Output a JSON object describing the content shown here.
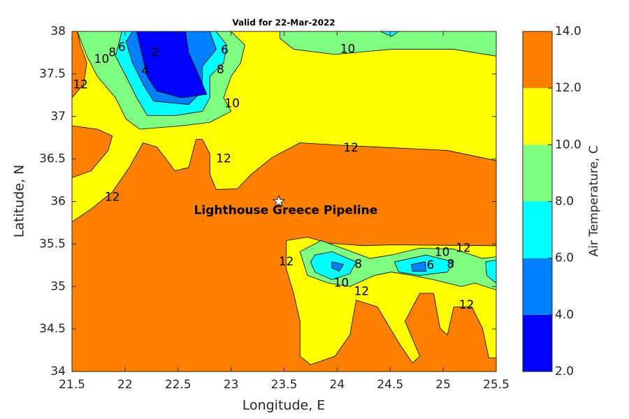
{
  "chart_data": {
    "type": "contour",
    "title": "Valid for 22-Mar-2022",
    "x_label": "Longitude, E",
    "y_label": "Latitude, N",
    "xlim": [
      21.5,
      25.5
    ],
    "ylim": [
      34,
      38
    ],
    "xticks": [
      21.5,
      22,
      22.5,
      23,
      23.5,
      24,
      24.5,
      25,
      25.5
    ],
    "yticks": [
      34,
      34.5,
      35,
      35.5,
      36,
      36.5,
      37,
      37.5,
      38
    ],
    "colorbar": {
      "label": "Air Temperature, C",
      "lim": [
        2,
        14
      ],
      "ticks": [
        {
          "value": 2,
          "label": "2.0"
        },
        {
          "value": 4,
          "label": "4.0"
        },
        {
          "value": 6,
          "label": "6.0"
        },
        {
          "value": 8,
          "label": "8.0"
        },
        {
          "value": 10,
          "label": "10.0"
        },
        {
          "value": 12,
          "label": "12.0"
        },
        {
          "value": 14,
          "label": "14.0"
        }
      ],
      "colors": [
        "#0000ff",
        "#0080ff",
        "#00ffff",
        "#80ff80",
        "#ffff00",
        "#ff8000"
      ]
    },
    "regions": [
      {
        "level": 12,
        "lon": [
          21.5,
          25.5,
          25.5,
          21.5
        ],
        "lat": [
          34,
          34,
          38,
          38
        ]
      },
      {
        "level": 10,
        "lon": [
          21.55,
          25.5,
          25.5,
          25.04,
          24.38,
          24.05,
          23.65,
          23.39,
          23.19,
          23.06,
          22.86,
          22.8,
          22.8,
          22.73,
          22.67,
          22.6,
          22.47,
          22.4,
          22.3,
          22.17,
          22.04,
          21.88,
          21.68,
          21.5,
          21.5,
          21.68,
          21.84,
          21.88,
          21.74,
          21.5,
          21.5,
          21.61,
          21.64,
          21.58
        ],
        "lat": [
          38,
          38,
          36.48,
          36.6,
          36.64,
          36.66,
          36.69,
          36.52,
          36.32,
          36.15,
          36.14,
          36.32,
          36.56,
          36.73,
          36.73,
          36.4,
          36.36,
          36.48,
          36.64,
          36.69,
          36.4,
          36.11,
          35.91,
          35.76,
          36.28,
          36.36,
          36.6,
          36.77,
          36.85,
          36.89,
          37.22,
          37.38,
          37.63,
          37.84
        ]
      },
      {
        "level": 10,
        "lon": [
          23.52,
          23.72,
          23.92,
          24.25,
          24.51,
          25.5,
          25.5,
          25.43,
          25.37,
          25.27,
          25.1,
          25.04,
          24.97,
          24.91,
          24.78,
          24.64,
          24.78,
          24.71,
          24.58,
          24.38,
          24.18,
          24.12,
          23.98,
          23.75,
          23.65,
          23.65,
          23.59,
          23.52
        ],
        "lat": [
          35.54,
          35.58,
          35.51,
          35.48,
          35.49,
          35.48,
          34.16,
          34.16,
          34.51,
          34.76,
          34.76,
          34.43,
          34.51,
          34.92,
          34.92,
          34.59,
          34.18,
          34.1,
          34.34,
          34.76,
          34.84,
          34.43,
          34.18,
          34.08,
          34.18,
          34.59,
          34.92,
          35.21
        ]
      },
      {
        "level": 8,
        "lon": [
          21.55,
          23.0,
          23.13,
          23.09,
          23.0,
          22.93,
          23.0,
          22.8,
          22.53,
          22.14,
          22.01,
          21.91,
          21.74,
          21.64
        ],
        "lat": [
          38,
          38,
          37.84,
          37.63,
          37.47,
          37.22,
          37.06,
          36.93,
          36.89,
          36.85,
          36.97,
          37.22,
          37.47,
          37.71
        ]
      },
      {
        "level": 8,
        "lon": [
          23.46,
          25.5,
          25.5,
          25.1,
          24.51,
          23.98,
          23.59,
          23.46
        ],
        "lat": [
          38,
          38,
          37.71,
          37.79,
          37.79,
          37.73,
          37.79,
          37.92
        ]
      },
      {
        "level": 8,
        "lon": [
          23.65,
          23.85,
          24.05,
          24.31,
          24.51,
          24.78,
          25.1,
          25.37,
          25.5,
          25.5,
          25.3,
          25.17,
          24.91,
          24.71,
          24.51,
          24.35,
          24.12,
          23.92,
          23.72
        ],
        "lat": [
          35.41,
          35.54,
          35.45,
          35.33,
          35.37,
          35.45,
          35.44,
          35.33,
          35.35,
          34.96,
          35.04,
          35.0,
          35.08,
          35.13,
          35.17,
          35.13,
          35.0,
          35.04,
          35.13
        ]
      },
      {
        "level": 6,
        "lon": [
          21.97,
          22.86,
          22.96,
          22.93,
          22.8,
          22.8,
          22.73,
          22.47,
          22.21,
          22.11,
          22.01,
          21.91
        ],
        "lat": [
          38,
          38,
          37.84,
          37.63,
          37.47,
          37.22,
          37.06,
          37.01,
          37.01,
          37.22,
          37.47,
          37.71
        ]
      },
      {
        "level": 6,
        "lon": [
          24.41,
          24.58,
          24.51
        ],
        "lat": [
          38,
          38,
          37.94
        ]
      },
      {
        "level": 6,
        "lon": [
          23.79,
          23.95,
          24.18,
          24.12,
          23.95,
          23.79,
          23.75
        ],
        "lat": [
          35.37,
          35.41,
          35.29,
          35.15,
          35.08,
          35.17,
          35.29
        ]
      },
      {
        "level": 6,
        "lon": [
          24.54,
          24.84,
          25.1,
          25.04,
          24.78,
          24.58
        ],
        "lat": [
          35.29,
          35.37,
          35.29,
          35.17,
          35.13,
          35.17
        ]
      },
      {
        "level": 6,
        "lon": [
          25.4,
          25.5,
          25.5,
          25.41
        ],
        "lat": [
          35.29,
          35.31,
          35.04,
          35.13
        ]
      },
      {
        "level": 4,
        "lon": [
          22.07,
          22.8,
          22.86,
          22.73,
          22.73,
          22.6,
          22.27,
          22.17,
          22.07,
          22.01
        ],
        "lat": [
          38,
          38,
          37.79,
          37.59,
          37.3,
          37.14,
          37.18,
          37.38,
          37.63,
          37.88
        ]
      },
      {
        "level": 4,
        "lon": [
          23.95,
          24.06,
          24.02,
          23.95
        ],
        "lat": [
          35.29,
          35.26,
          35.18,
          35.22
        ]
      },
      {
        "level": 4,
        "lon": [
          24.7,
          24.83,
          24.84,
          24.71
        ],
        "lat": [
          35.26,
          35.29,
          35.18,
          35.18
        ]
      },
      {
        "level": 2,
        "lon": [
          22.11,
          22.57,
          22.6,
          22.7,
          22.77,
          22.53,
          22.3,
          22.21,
          22.17
        ],
        "lat": [
          38,
          38,
          37.75,
          37.47,
          37.26,
          37.22,
          37.3,
          37.47,
          37.67
        ]
      }
    ],
    "contour_labels": [
      {
        "label": "10",
        "lon": 21.78,
        "lat": 37.67
      },
      {
        "label": "8",
        "lon": 21.88,
        "lat": 37.75
      },
      {
        "label": "6",
        "lon": 21.97,
        "lat": 37.81
      },
      {
        "label": "2",
        "lon": 22.28,
        "lat": 37.75
      },
      {
        "label": "4",
        "lon": 22.19,
        "lat": 37.53
      },
      {
        "label": "6",
        "lon": 22.94,
        "lat": 37.78
      },
      {
        "label": "8",
        "lon": 22.9,
        "lat": 37.55
      },
      {
        "label": "10",
        "lon": 23.01,
        "lat": 37.15
      },
      {
        "label": "10",
        "lon": 24.1,
        "lat": 37.79
      },
      {
        "label": "12",
        "lon": 21.58,
        "lat": 37.37
      },
      {
        "label": "12",
        "lon": 24.13,
        "lat": 36.63
      },
      {
        "label": "12",
        "lon": 22.93,
        "lat": 36.5
      },
      {
        "label": "12",
        "lon": 21.88,
        "lat": 36.05
      },
      {
        "label": "12",
        "lon": 23.52,
        "lat": 35.29
      },
      {
        "label": "8",
        "lon": 24.2,
        "lat": 35.26
      },
      {
        "label": "10",
        "lon": 24.04,
        "lat": 35.04
      },
      {
        "label": "12",
        "lon": 24.23,
        "lat": 34.94
      },
      {
        "label": "6",
        "lon": 24.88,
        "lat": 35.25
      },
      {
        "label": "8",
        "lon": 25.07,
        "lat": 35.26
      },
      {
        "label": "10",
        "lon": 24.99,
        "lat": 35.4
      },
      {
        "label": "12",
        "lon": 25.19,
        "lat": 35.45
      },
      {
        "label": "12",
        "lon": 25.22,
        "lat": 34.78
      }
    ],
    "marker": {
      "label": "Lighthouse Greece Pipeline",
      "lon": 23.45,
      "lat": 36.0
    }
  }
}
